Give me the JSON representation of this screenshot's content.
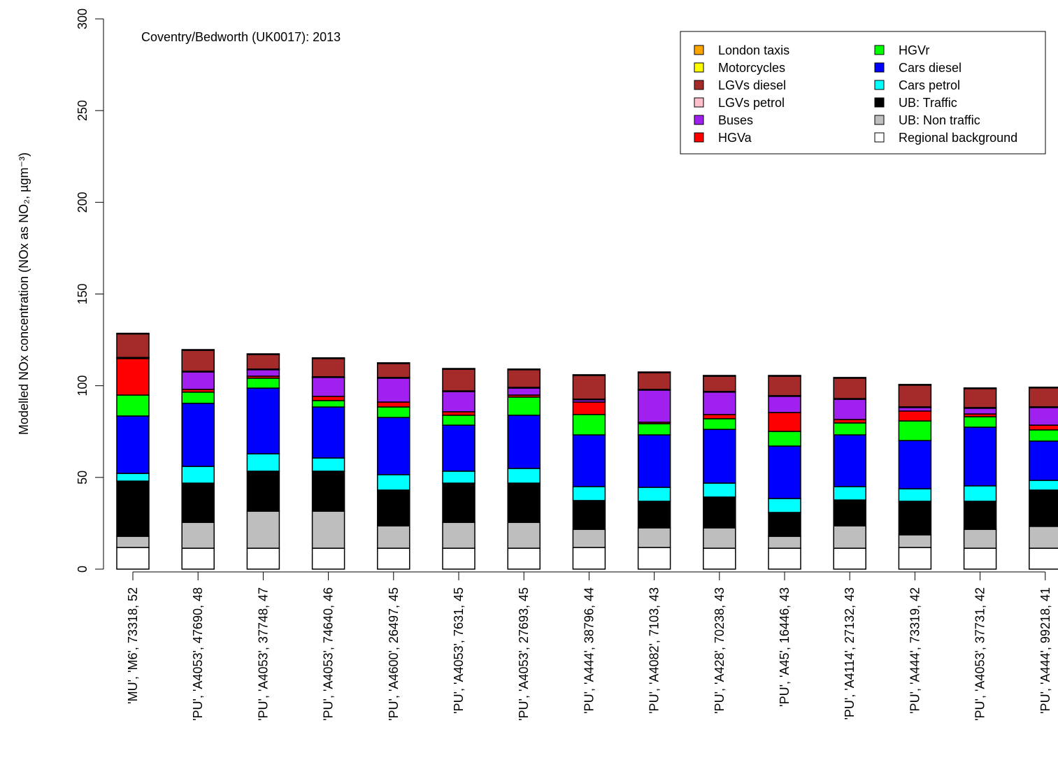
{
  "chart_data": {
    "type": "stacked_bar",
    "title": "Coventry/Bedworth (UK0017): 2013",
    "y_label": "Modelled NOx concentration (NOx as NO₂, µgm⁻³)",
    "categories": [
      "'MU', 'M6', 73318, 52",
      "'PU', 'A4053', 47690, 48",
      "'PU', 'A4053', 37748, 47",
      "'PU', 'A4053', 74640, 46",
      "'PU', 'A4600', 26497, 45",
      "'PU', 'A4053', 7631, 45",
      "'PU', 'A4053', 27693, 45",
      "'PU', 'A444', 38796, 44",
      "'PU', 'A4082', 7103, 43",
      "'PU', 'A428', 70238, 43",
      "'PU', 'A45', 16446, 43",
      "'PU', 'A4114', 27132, 43",
      "'PU', 'A444', 73319, 42",
      "'PU', 'A4053', 37731, 42",
      "'PU', 'A444', 99218, 41"
    ],
    "series": [
      {
        "name": "Regional background",
        "color": "#ffffff",
        "values": [
          11.8,
          11.4,
          11.4,
          11.4,
          11.4,
          11.4,
          11.4,
          11.8,
          11.8,
          11.4,
          11.4,
          11.4,
          11.8,
          11.4,
          11.4
        ]
      },
      {
        "name": "UB: Non traffic",
        "color": "#bebebe",
        "values": [
          6.1,
          14.1,
          20.2,
          20.2,
          12.2,
          14.1,
          14.1,
          9.9,
          10.7,
          11.1,
          6.5,
          12.2,
          6.9,
          10.3,
          11.9
        ]
      },
      {
        "name": "UB: Traffic",
        "color": "#000000",
        "values": [
          30.1,
          21.4,
          21.8,
          21.8,
          19.5,
          21.4,
          21.4,
          15.7,
          14.5,
          16.8,
          13,
          14.1,
          18.3,
          15.3,
          19.8
        ]
      },
      {
        "name": "Cars petrol",
        "color": "#00ffff",
        "values": [
          4.2,
          9.1,
          9.5,
          7.2,
          8.4,
          6.5,
          8.0,
          7.6,
          7.6,
          7.6,
          7.6,
          7.3,
          6.8,
          8.4,
          5.3
        ]
      },
      {
        "name": "Cars diesel",
        "color": "#0000ff",
        "values": [
          31.3,
          34.4,
          35.8,
          27.8,
          31.2,
          25.1,
          29.0,
          28.2,
          28.6,
          29.3,
          28.6,
          28.2,
          26.3,
          32,
          21.4
        ]
      },
      {
        "name": "HGVr",
        "color": "#00ff00",
        "values": [
          11.4,
          6.1,
          5.4,
          3.5,
          5.7,
          5.4,
          9.9,
          11.1,
          6.1,
          5.8,
          8,
          6.5,
          10.7,
          5.7,
          6.1
        ]
      },
      {
        "name": "HGVa",
        "color": "#ff0000",
        "values": [
          19.9,
          1.5,
          1.1,
          2.3,
          2.7,
          1.9,
          1.1,
          6.8,
          0.8,
          2.3,
          10.3,
          1.9,
          5.4,
          1.5,
          2.6
        ]
      },
      {
        "name": "Buses",
        "color": "#a020f0",
        "values": [
          0.4,
          9.5,
          3.5,
          10.3,
          13,
          11,
          3.8,
          1.2,
          17.5,
          12.2,
          8.8,
          11,
          1.9,
          3.1,
          9.6
        ]
      },
      {
        "name": "LGVs petrol",
        "color": "#ffc0cb",
        "values": [
          0.2,
          0.4,
          0.4,
          0.4,
          0.4,
          0.4,
          0.4,
          0.4,
          0.4,
          0.4,
          0.4,
          0.4,
          0.4,
          0.4,
          0.4
        ]
      },
      {
        "name": "LGVs diesel",
        "color": "#a52a2a",
        "values": [
          12.8,
          11.4,
          7.9,
          9.9,
          7.6,
          11.8,
          9.6,
          12.9,
          9.1,
          8.3,
          10.6,
          11.1,
          11.8,
          10.3,
          10.3
        ]
      },
      {
        "name": "Motorcycles",
        "color": "#ffff00",
        "values": [
          0.4,
          0.4,
          0.4,
          0.4,
          0.4,
          0.4,
          0.4,
          0.4,
          0.4,
          0.4,
          0.4,
          0.4,
          0.4,
          0.4,
          0.4
        ]
      },
      {
        "name": "London taxis",
        "color": "#ffa500",
        "values": [
          0,
          0,
          0,
          0,
          0,
          0,
          0,
          0,
          0,
          0,
          0,
          0,
          0,
          0,
          0
        ]
      }
    ],
    "ylim": [
      0,
      300
    ],
    "yticks": [
      0,
      50,
      100,
      150,
      200,
      250,
      300
    ],
    "legend": "top-right"
  }
}
